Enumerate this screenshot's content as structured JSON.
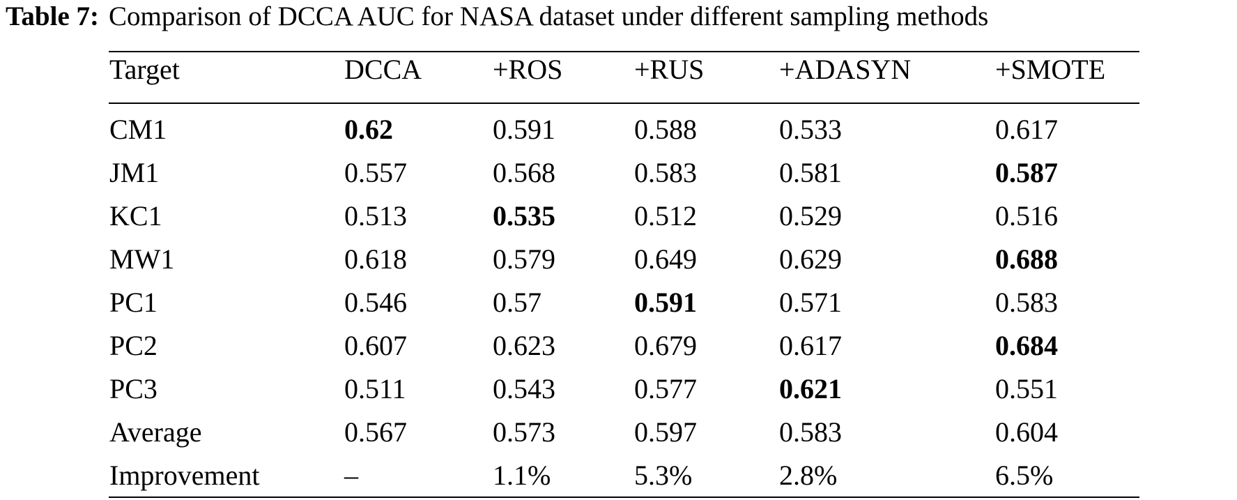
{
  "caption": {
    "label": "Table 7:",
    "text": "Comparison of DCCA AUC for NASA dataset under different sampling methods"
  },
  "table": {
    "headers": [
      "Target",
      "DCCA",
      "+ROS",
      "+RUS",
      "+ADASYN",
      "+SMOTE"
    ],
    "rows": [
      {
        "cells": [
          "CM1",
          "0.62",
          "0.591",
          "0.588",
          "0.533",
          "0.617"
        ],
        "bold": [
          1
        ]
      },
      {
        "cells": [
          "JM1",
          "0.557",
          "0.568",
          "0.583",
          "0.581",
          "0.587"
        ],
        "bold": [
          5
        ]
      },
      {
        "cells": [
          "KC1",
          "0.513",
          "0.535",
          "0.512",
          "0.529",
          "0.516"
        ],
        "bold": [
          2
        ]
      },
      {
        "cells": [
          "MW1",
          "0.618",
          "0.579",
          "0.649",
          "0.629",
          "0.688"
        ],
        "bold": [
          5
        ]
      },
      {
        "cells": [
          "PC1",
          "0.546",
          "0.57",
          "0.591",
          "0.571",
          "0.583"
        ],
        "bold": [
          3
        ]
      },
      {
        "cells": [
          "PC2",
          "0.607",
          "0.623",
          "0.679",
          "0.617",
          "0.684"
        ],
        "bold": [
          5
        ]
      },
      {
        "cells": [
          "PC3",
          "0.511",
          "0.543",
          "0.577",
          "0.621",
          "0.551"
        ],
        "bold": [
          4
        ]
      },
      {
        "cells": [
          "Average",
          "0.567",
          "0.573",
          "0.597",
          "0.583",
          "0.604"
        ],
        "bold": []
      },
      {
        "cells": [
          "Improvement",
          "–",
          "1.1%",
          "5.3%",
          "2.8%",
          "6.5%"
        ],
        "bold": []
      }
    ]
  }
}
